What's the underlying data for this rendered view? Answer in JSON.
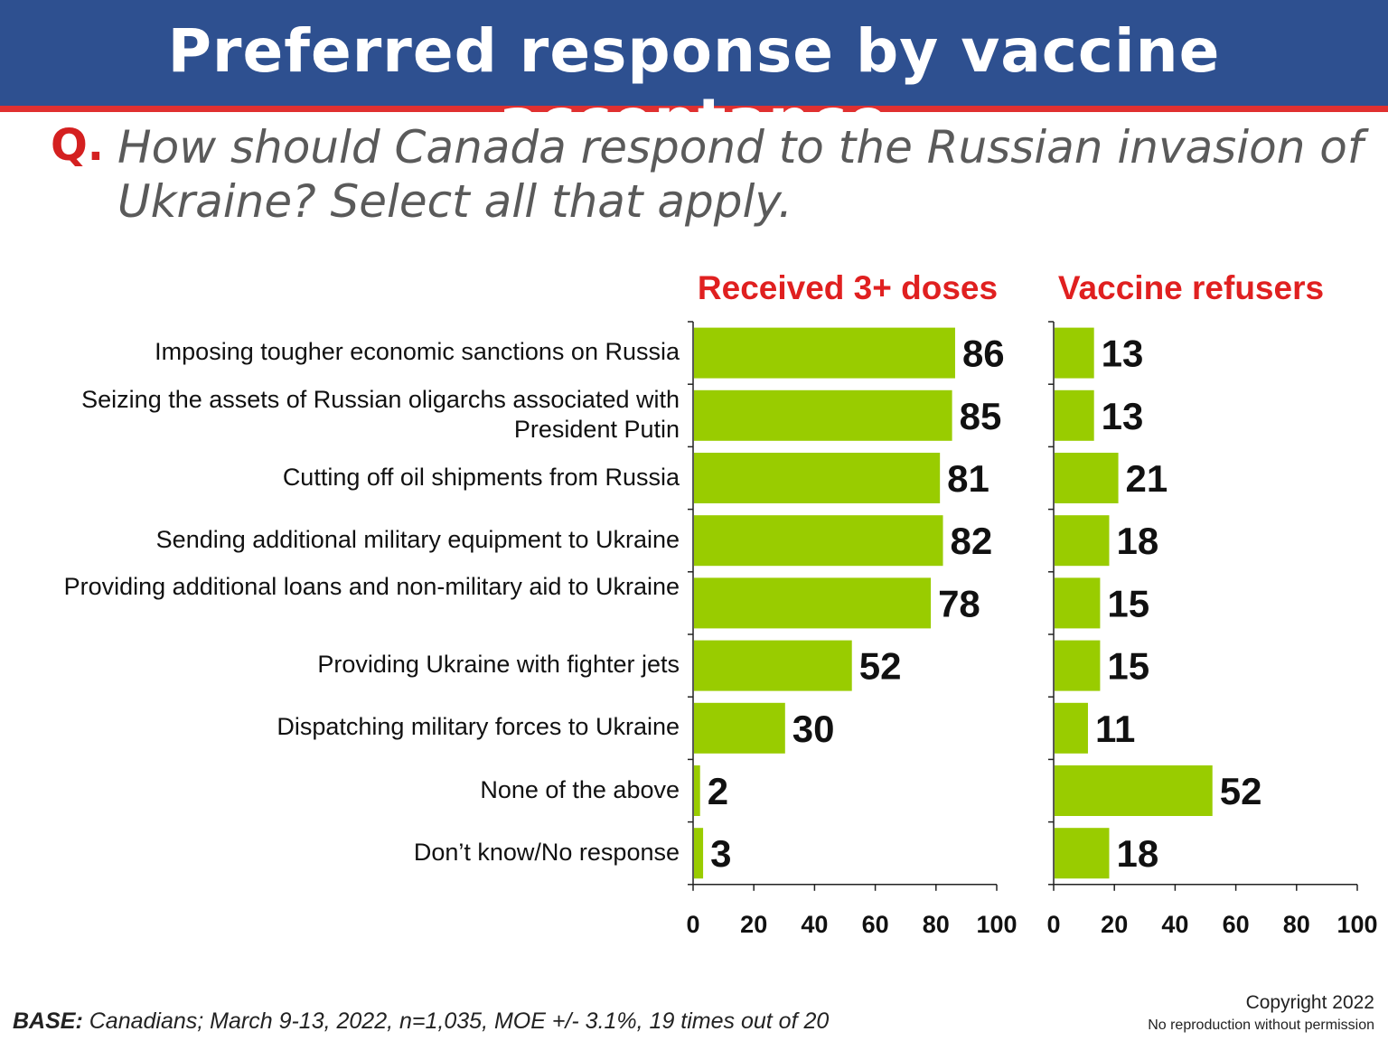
{
  "header": {
    "title": "Preferred response by vaccine acceptance"
  },
  "question": {
    "marker": "Q.",
    "text": "How should Canada respond to the Russian invasion of Ukraine? Select all that apply."
  },
  "footer": {
    "base_label": "BASE:",
    "base_text": " Canadians; March 9-13, 2022, n=1,035, MOE +/- 3.1%, 19 times out of 20",
    "copyright": "Copyright 2022",
    "no_reproduction": "No reproduction without permission"
  },
  "colors": {
    "header_bg": "#2e5090",
    "accent_red": "#e02020",
    "bar": "#99cc00"
  },
  "chart_data": {
    "type": "bar",
    "orientation": "horizontal",
    "categories": [
      "Imposing tougher economic sanctions on Russia",
      "Seizing the assets of Russian oligarchs associated with President Putin",
      "Cutting off oil shipments from Russia",
      "Sending additional military equipment to Ukraine",
      "Providing additional loans and non-military aid to Ukraine",
      "Providing Ukraine with fighter jets",
      "Dispatching military forces to Ukraine",
      "None of the above",
      "Don’t know/No response"
    ],
    "series": [
      {
        "name": "Received 3+ doses",
        "values": [
          86,
          85,
          81,
          82,
          78,
          52,
          30,
          2,
          3
        ]
      },
      {
        "name": "Vaccine refusers",
        "values": [
          13,
          13,
          21,
          18,
          15,
          15,
          11,
          52,
          18
        ]
      }
    ],
    "xlim": [
      0,
      100
    ],
    "xticks": [
      "0",
      "20",
      "40",
      "60",
      "80",
      "100"
    ],
    "grid": false,
    "data_labels": true
  }
}
